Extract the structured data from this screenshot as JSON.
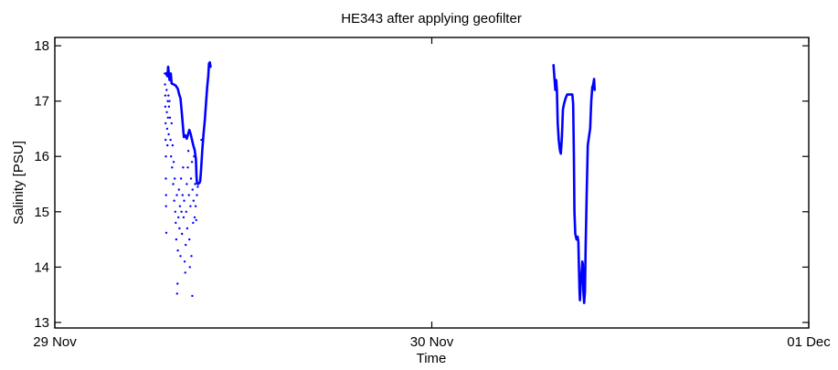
{
  "chart_data": {
    "type": "line",
    "title": "HE343 after applying geofilter",
    "xlabel": "Time",
    "ylabel": "Salinity [PSU]",
    "xlim": [
      "29 Nov 00:00",
      "01 Dec 00:00"
    ],
    "ylim": [
      12.9,
      18.15
    ],
    "x_ticks": [
      {
        "at": "29 Nov 00:00",
        "label": "29 Nov"
      },
      {
        "at": "30 Nov 00:00",
        "label": "30 Nov"
      },
      {
        "at": "01 Dec 00:00",
        "label": "01 Dec"
      }
    ],
    "y_ticks": [
      {
        "value": 13,
        "label": "13"
      },
      {
        "value": 14,
        "label": "14"
      },
      {
        "value": 15,
        "label": "15"
      },
      {
        "value": 16,
        "label": "16"
      },
      {
        "value": 17,
        "label": "17"
      },
      {
        "value": 18,
        "label": "18"
      }
    ],
    "grid": false,
    "legend": "none",
    "color": "#0000ff",
    "series": [
      {
        "points": [
          [
            "29 Nov 07:05",
            17.5
          ],
          [
            "29 Nov 07:10",
            17.45
          ],
          [
            "29 Nov 07:13",
            17.62
          ],
          [
            "29 Nov 07:18",
            17.38
          ],
          [
            "29 Nov 07:23",
            17.5
          ],
          [
            "29 Nov 07:26",
            17.32
          ],
          [
            "29 Nov 07:35",
            17.3
          ],
          [
            "29 Nov 07:42",
            17.28
          ],
          [
            "29 Nov 07:50",
            17.22
          ],
          [
            "29 Nov 07:55",
            17.12
          ],
          [
            "29 Nov 08:00",
            17.05
          ],
          [
            "29 Nov 08:05",
            16.8
          ],
          [
            "29 Nov 08:10",
            16.5
          ],
          [
            "29 Nov 08:13",
            16.35
          ],
          [
            "29 Nov 08:18",
            16.38
          ],
          [
            "29 Nov 08:24",
            16.32
          ],
          [
            "29 Nov 08:29",
            16.4
          ],
          [
            "29 Nov 08:34",
            16.48
          ],
          [
            "29 Nov 08:39",
            16.4
          ],
          [
            "29 Nov 08:44",
            16.3
          ],
          [
            "29 Nov 08:49",
            16.2
          ],
          [
            "29 Nov 08:54",
            16.12
          ],
          [
            "29 Nov 08:59",
            15.95
          ],
          [
            "29 Nov 09:01",
            15.65
          ],
          [
            "29 Nov 09:03",
            15.52
          ],
          [
            "29 Nov 09:07",
            15.5
          ],
          [
            "29 Nov 09:12",
            15.52
          ],
          [
            "29 Nov 09:15",
            15.55
          ],
          [
            "29 Nov 09:18",
            15.7
          ],
          [
            "29 Nov 09:23",
            16.1
          ],
          [
            "29 Nov 09:28",
            16.4
          ],
          [
            "29 Nov 09:33",
            16.65
          ],
          [
            "29 Nov 09:38",
            17.0
          ],
          [
            "29 Nov 09:42",
            17.25
          ],
          [
            "29 Nov 09:46",
            17.45
          ],
          [
            "29 Nov 09:49",
            17.68
          ],
          [
            "29 Nov 09:52",
            17.7
          ],
          [
            "29 Nov 09:55",
            17.62
          ]
        ]
      },
      {
        "points": [
          [
            "30 Nov 07:45",
            17.65
          ],
          [
            "30 Nov 07:49",
            17.4
          ],
          [
            "30 Nov 07:52",
            17.2
          ],
          [
            "30 Nov 07:55",
            17.38
          ],
          [
            "30 Nov 07:58",
            17.2
          ],
          [
            "30 Nov 08:01",
            16.6
          ],
          [
            "30 Nov 08:05",
            16.3
          ],
          [
            "30 Nov 08:09",
            16.12
          ],
          [
            "30 Nov 08:13",
            16.05
          ],
          [
            "30 Nov 08:17",
            16.35
          ],
          [
            "30 Nov 08:21",
            16.85
          ],
          [
            "30 Nov 08:25",
            16.95
          ],
          [
            "30 Nov 08:31",
            17.05
          ],
          [
            "30 Nov 08:37",
            17.12
          ],
          [
            "30 Nov 08:47",
            17.12
          ],
          [
            "30 Nov 08:57",
            17.12
          ],
          [
            "30 Nov 09:00",
            16.95
          ],
          [
            "30 Nov 09:03",
            16.0
          ],
          [
            "30 Nov 09:05",
            15.0
          ],
          [
            "30 Nov 09:08",
            14.6
          ],
          [
            "30 Nov 09:13",
            14.5
          ],
          [
            "30 Nov 09:17",
            14.55
          ],
          [
            "30 Nov 09:20",
            14.45
          ],
          [
            "30 Nov 09:22",
            14.0
          ],
          [
            "30 Nov 09:24",
            13.6
          ],
          [
            "30 Nov 09:26",
            13.4
          ],
          [
            "30 Nov 09:29",
            13.7
          ],
          [
            "30 Nov 09:32",
            13.9
          ],
          [
            "30 Nov 09:35",
            14.1
          ],
          [
            "30 Nov 09:37",
            14.05
          ],
          [
            "30 Nov 09:39",
            13.55
          ],
          [
            "30 Nov 09:42",
            13.35
          ],
          [
            "30 Nov 09:45",
            13.55
          ],
          [
            "30 Nov 09:48",
            14.4
          ],
          [
            "30 Nov 09:52",
            15.4
          ],
          [
            "30 Nov 09:56",
            16.2
          ],
          [
            "30 Nov 10:01",
            16.38
          ],
          [
            "30 Nov 10:05",
            16.5
          ],
          [
            "30 Nov 10:09",
            17.0
          ],
          [
            "30 Nov 10:13",
            17.25
          ],
          [
            "30 Nov 10:17",
            17.3
          ],
          [
            "30 Nov 10:20",
            17.4
          ],
          [
            "30 Nov 10:22",
            17.2
          ]
        ]
      }
    ],
    "scatter_points": [
      [
        "29 Nov 07:00",
        17.5
      ],
      [
        "29 Nov 07:01",
        17.3
      ],
      [
        "29 Nov 07:02",
        17.1
      ],
      [
        "29 Nov 07:02",
        16.9
      ],
      [
        "29 Nov 07:03",
        16.6
      ],
      [
        "29 Nov 07:03",
        16.3
      ],
      [
        "29 Nov 07:04",
        16.0
      ],
      [
        "29 Nov 07:04",
        15.6
      ],
      [
        "29 Nov 07:05",
        15.3
      ],
      [
        "29 Nov 07:05",
        15.1
      ],
      [
        "29 Nov 07:06",
        14.62
      ],
      [
        "29 Nov 07:07",
        17.2
      ],
      [
        "29 Nov 07:08",
        16.8
      ],
      [
        "29 Nov 07:09",
        16.5
      ],
      [
        "29 Nov 07:10",
        16.2
      ],
      [
        "29 Nov 07:11",
        17.0
      ],
      [
        "29 Nov 07:12",
        16.7
      ],
      [
        "29 Nov 07:14",
        17.1
      ],
      [
        "29 Nov 07:15",
        16.4
      ],
      [
        "29 Nov 07:16",
        16.9
      ],
      [
        "29 Nov 07:18",
        17.0
      ],
      [
        "29 Nov 07:20",
        16.7
      ],
      [
        "29 Nov 07:22",
        16.3
      ],
      [
        "29 Nov 07:24",
        16.0
      ],
      [
        "29 Nov 07:26",
        16.6
      ],
      [
        "29 Nov 07:28",
        15.8
      ],
      [
        "29 Nov 07:30",
        16.2
      ],
      [
        "29 Nov 07:32",
        15.5
      ],
      [
        "29 Nov 07:34",
        15.9
      ],
      [
        "29 Nov 07:36",
        15.2
      ],
      [
        "29 Nov 07:38",
        15.6
      ],
      [
        "29 Nov 07:40",
        15.0
      ],
      [
        "29 Nov 07:42",
        14.8
      ],
      [
        "29 Nov 07:44",
        14.5
      ],
      [
        "29 Nov 07:46",
        15.3
      ],
      [
        "29 Nov 07:47",
        13.52
      ],
      [
        "29 Nov 07:49",
        13.7
      ],
      [
        "29 Nov 07:50",
        14.3
      ],
      [
        "29 Nov 07:52",
        14.9
      ],
      [
        "29 Nov 07:54",
        15.4
      ],
      [
        "29 Nov 07:56",
        14.7
      ],
      [
        "29 Nov 07:58",
        15.1
      ],
      [
        "29 Nov 08:00",
        14.2
      ],
      [
        "29 Nov 08:02",
        15.6
      ],
      [
        "29 Nov 08:04",
        15.0
      ],
      [
        "29 Nov 08:06",
        14.6
      ],
      [
        "29 Nov 08:08",
        15.3
      ],
      [
        "29 Nov 08:10",
        15.8
      ],
      [
        "29 Nov 08:12",
        14.9
      ],
      [
        "29 Nov 08:14",
        15.2
      ],
      [
        "29 Nov 08:16",
        14.1
      ],
      [
        "29 Nov 08:18",
        13.9
      ],
      [
        "29 Nov 08:20",
        14.4
      ],
      [
        "29 Nov 08:22",
        15.0
      ],
      [
        "29 Nov 08:24",
        15.5
      ],
      [
        "29 Nov 08:26",
        14.7
      ],
      [
        "29 Nov 08:28",
        15.8
      ],
      [
        "29 Nov 08:30",
        16.1
      ],
      [
        "29 Nov 08:32",
        15.3
      ],
      [
        "29 Nov 08:34",
        14.5
      ],
      [
        "29 Nov 08:36",
        14.0
      ],
      [
        "29 Nov 08:38",
        15.1
      ],
      [
        "29 Nov 08:40",
        15.6
      ],
      [
        "29 Nov 08:42",
        14.2
      ],
      [
        "29 Nov 08:44",
        15.9
      ],
      [
        "29 Nov 08:45",
        13.48
      ],
      [
        "29 Nov 08:46",
        15.4
      ],
      [
        "29 Nov 08:48",
        14.8
      ],
      [
        "29 Nov 08:50",
        15.2
      ],
      [
        "29 Nov 08:52",
        16.0
      ],
      [
        "29 Nov 08:54",
        14.9
      ],
      [
        "29 Nov 08:56",
        15.5
      ],
      [
        "29 Nov 08:58",
        15.1
      ],
      [
        "29 Nov 09:00",
        14.85
      ],
      [
        "29 Nov 09:03",
        15.3
      ],
      [
        "29 Nov 09:06",
        15.45
      ],
      [
        "29 Nov 09:20",
        16.3
      ],
      [
        "29 Nov 09:24",
        16.2
      ]
    ]
  }
}
